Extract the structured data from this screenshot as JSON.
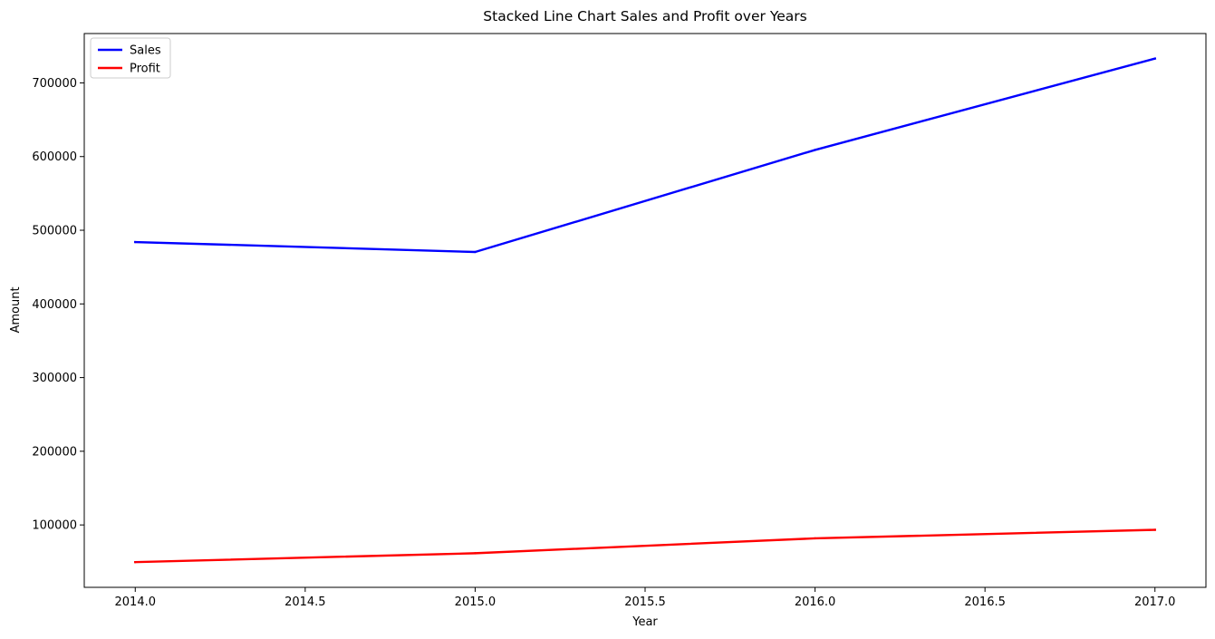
{
  "chart_data": {
    "type": "line",
    "title": "Stacked Line Chart Sales and Profit over Years",
    "xlabel": "Year",
    "ylabel": "Amount",
    "x": [
      2014,
      2015,
      2016,
      2017
    ],
    "series": [
      {
        "name": "Sales",
        "color": "#0000ff",
        "values": [
          484000,
          470500,
          609000,
          733000
        ]
      },
      {
        "name": "Profit",
        "color": "#ff0000",
        "values": [
          49500,
          61600,
          81800,
          93400
        ]
      }
    ],
    "xlim": [
      2013.85,
      2017.15
    ],
    "ylim": [
      15300,
      767000
    ],
    "xticks": [
      2014.0,
      2014.5,
      2015.0,
      2015.5,
      2016.0,
      2016.5,
      2017.0
    ],
    "xtick_labels": [
      "2014.0",
      "2014.5",
      "2015.0",
      "2015.5",
      "2016.0",
      "2016.5",
      "2017.0"
    ],
    "yticks": [
      100000,
      200000,
      300000,
      400000,
      500000,
      600000,
      700000
    ],
    "ytick_labels": [
      "100000",
      "200000",
      "300000",
      "400000",
      "500000",
      "600000",
      "700000"
    ],
    "grid": false,
    "legend": "upper-left"
  }
}
